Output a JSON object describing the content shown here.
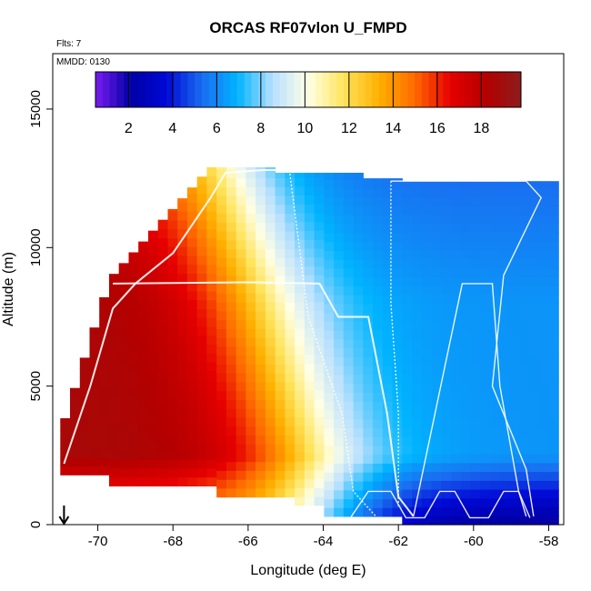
{
  "chart_data": {
    "type": "heatmap",
    "title": "ORCAS RF07vlon U_FMPD",
    "flights_note": "Flts: 7",
    "date_note": "MMDD: 0130",
    "xlabel": "Longitude (deg E)",
    "ylabel": "Altitude (m)",
    "xlim": [
      -71.2,
      -57.6
    ],
    "ylim": [
      0,
      17000
    ],
    "x_ticks": [
      "-70",
      "-68",
      "-66",
      "-64",
      "-62",
      "-60",
      "-58"
    ],
    "x_tick_values": [
      -70,
      -68,
      -66,
      -64,
      -62,
      -60,
      -58
    ],
    "y_ticks": [
      "0",
      "5000",
      "10000",
      "15000"
    ],
    "y_tick_values": [
      0,
      5000,
      10000,
      15000
    ],
    "colorbar": {
      "range": [
        0.5,
        19.8
      ],
      "tick_labels": [
        "2",
        "4",
        "6",
        "8",
        "10",
        "12",
        "14",
        "16",
        "18"
      ],
      "tick_values": [
        2,
        4,
        6,
        8,
        10,
        12,
        14,
        16,
        18
      ],
      "colors": [
        "#7a1cf0",
        "#0000a6",
        "#0008d6",
        "#1a6cf0",
        "#00b4ff",
        "#b8e0ff",
        "#ffffe6",
        "#ffe45c",
        "#ffb000",
        "#ff6a00",
        "#e60000",
        "#b40000",
        "#8c1c1c"
      ],
      "placement": "top"
    },
    "field_description": "Wind component U (m/s) vs longitude and altitude; high values (~18) in west at mid-upper levels, decreasing eastward to ~5-6; lowest (~1-3) near surface in east",
    "highlight_colors": {
      "flight_track": "#ffffff",
      "arrow": "#000000"
    },
    "arrow_longitude": -70.9
  }
}
